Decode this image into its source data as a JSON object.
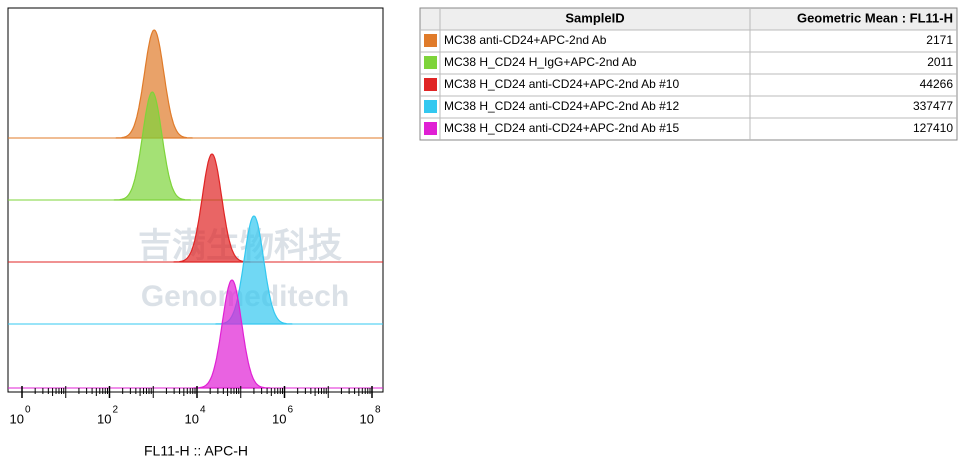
{
  "chart_data": {
    "type": "histogram-overlay",
    "x_label": "FL11-H :: APC-H",
    "log_x": true,
    "xlim": [
      1,
      100000000
    ],
    "xticks": [
      {
        "value": 1,
        "label": "10",
        "exponent": "0"
      },
      {
        "value": 100,
        "label": "10",
        "exponent": "2"
      },
      {
        "value": 10000,
        "label": "10",
        "exponent": "4"
      },
      {
        "value": 1000000,
        "label": "10",
        "exponent": "6"
      },
      {
        "value": 100000000,
        "label": "10",
        "exponent": "8"
      }
    ],
    "table_headers": [
      "SampleID",
      "Geometric Mean : FL11-H"
    ],
    "series": [
      {
        "name": "MC38 anti-CD24+APC-2nd Ab",
        "color": "#e07b2a",
        "peak": 1050,
        "geometric_mean": 2171
      },
      {
        "name": "MC38 H_CD24 H_IgG+APC-2nd Ab",
        "color": "#7ed43a",
        "peak": 950,
        "geometric_mean": 2011
      },
      {
        "name": "MC38 H_CD24 anti-CD24+APC-2nd Ab #10",
        "color": "#e02424",
        "peak": 22000,
        "geometric_mean": 44266
      },
      {
        "name": "MC38 H_CD24 anti-CD24+APC-2nd Ab #12",
        "color": "#33c8f0",
        "peak": 200000,
        "geometric_mean": 337477
      },
      {
        "name": "MC38 H_CD24 anti-CD24+APC-2nd Ab #15",
        "color": "#e020d4",
        "peak": 63000,
        "geometric_mean": 127410
      }
    ],
    "watermark": [
      "吉满生物科技",
      "Genomeditech"
    ]
  }
}
